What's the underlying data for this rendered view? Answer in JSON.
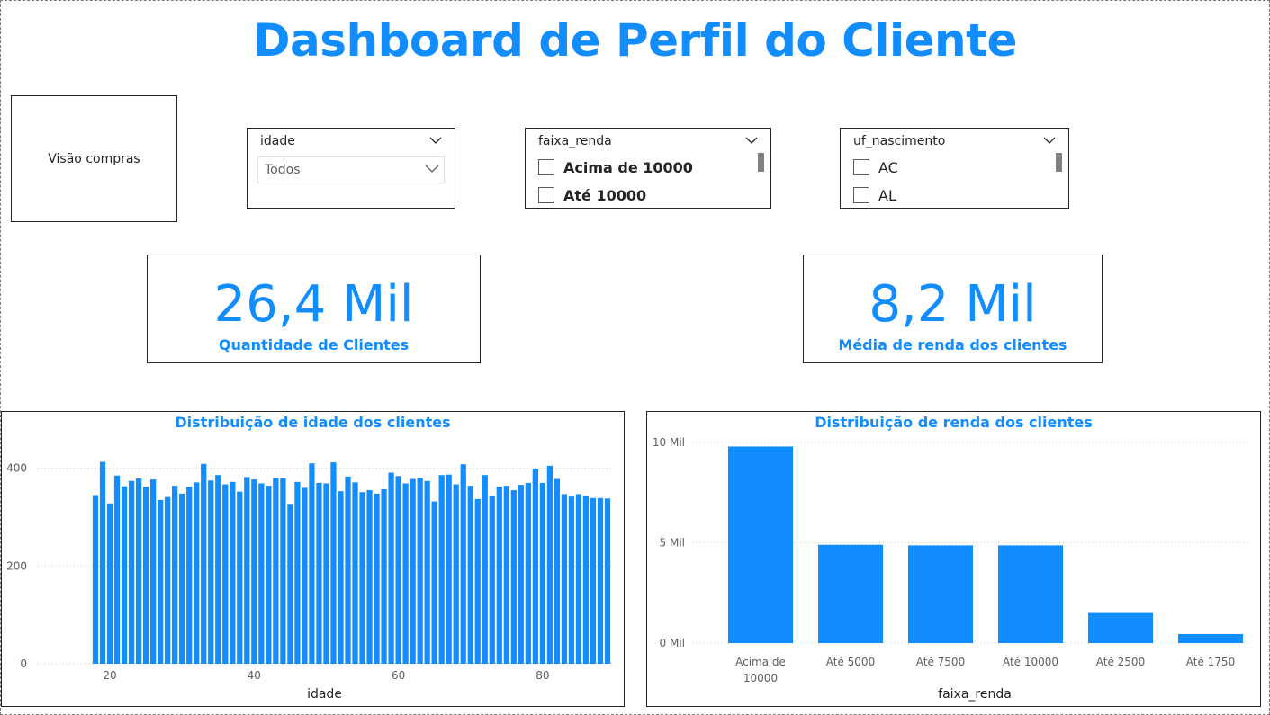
{
  "header": {
    "title": "Dashboard de Perfil do Cliente"
  },
  "nav": {
    "visao_compras_label": "Visão compras"
  },
  "slicers": {
    "idade": {
      "title": "idade",
      "selected": "Todos"
    },
    "faixa_renda": {
      "title": "faixa_renda",
      "options": [
        "Acima de 10000",
        "Até 10000"
      ]
    },
    "uf_nascimento": {
      "title": "uf_nascimento",
      "options": [
        "AC",
        "AL"
      ]
    }
  },
  "kpis": {
    "clientes": {
      "value": "26,4 Mil",
      "label": "Quantidade de Clientes"
    },
    "renda": {
      "value": "8,2 Mil",
      "label": "Média de renda dos clientes"
    }
  },
  "colors": {
    "accent": "#118DFF",
    "text": "#252423",
    "grid": "#c8c6c4",
    "muted": "#605e5c"
  },
  "icons": {
    "dropdown": "chevron-down-icon",
    "checkbox": "checkbox-icon"
  },
  "chart_data": [
    {
      "type": "bar",
      "title": "Distribuição de idade dos clientes",
      "xlabel": "idade",
      "ylabel": "",
      "x_start": 18,
      "x_ticks": [
        "20",
        "40",
        "60",
        "80"
      ],
      "y_ticks": [
        "0",
        "200",
        "400"
      ],
      "ylim": [
        0,
        460
      ],
      "values": [
        345,
        413,
        328,
        385,
        363,
        374,
        379,
        362,
        377,
        335,
        341,
        364,
        348,
        362,
        371,
        409,
        375,
        386,
        367,
        372,
        352,
        382,
        377,
        369,
        364,
        380,
        379,
        327,
        372,
        360,
        410,
        370,
        369,
        412,
        353,
        383,
        371,
        351,
        355,
        348,
        357,
        391,
        384,
        369,
        378,
        380,
        374,
        332,
        386,
        387,
        367,
        408,
        364,
        337,
        386,
        343,
        362,
        364,
        355,
        366,
        370,
        399,
        370,
        405,
        378,
        347,
        342,
        347,
        343,
        339,
        339,
        338
      ],
      "grid": true
    },
    {
      "type": "bar",
      "title": "Distribuição de renda dos clientes",
      "xlabel": "faixa_renda",
      "ylabel": "",
      "categories": [
        "Acima de 10000",
        "Até 5000",
        "Até 7500",
        "Até 10000",
        "Até 2500",
        "Até 1750"
      ],
      "values": [
        9800,
        4900,
        4870,
        4870,
        1500,
        450
      ],
      "y_ticks": [
        "0 Mil",
        "5 Mil",
        "10 Mil"
      ],
      "ylim": [
        0,
        10000
      ],
      "grid": true
    }
  ]
}
